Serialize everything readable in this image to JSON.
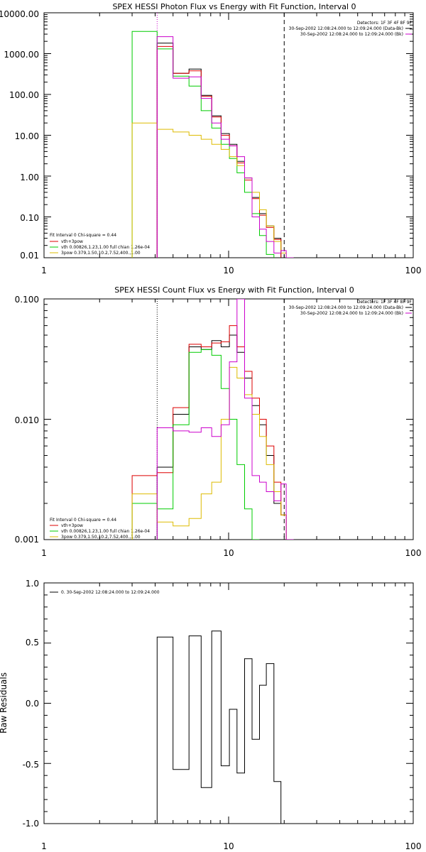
{
  "chart_data": [
    {
      "type": "line",
      "title": "SPEX HESSI Photon Flux vs Energy with Fit Function, Interval 0",
      "xscale": "log",
      "yscale": "log",
      "xlim": [
        1,
        100
      ],
      "ylim": [
        0.01,
        10000
      ],
      "xticks": [
        1,
        10,
        100
      ],
      "xtick_labels": [
        "1",
        "10",
        "100"
      ],
      "yticks": [
        0.01,
        0.1,
        1,
        10,
        100,
        1000,
        10000
      ],
      "ytick_labels": [
        "0.01",
        "0.10",
        "1.00",
        "10.00",
        "100.00",
        "1000.00",
        "10000.00"
      ],
      "ylabel": "",
      "xlabel": "",
      "detector_text": "Detectors: 1F 3F 4F 8F 9F",
      "time_labels": [
        {
          "text": "30-Sep-2002 12:08:24.000 to 12:09:24.000 (Data-Bk)",
          "color": "#000000"
        },
        {
          "text": "30-Sep-2002 12:08:24.000 to 12:09:24.000 (Bk)",
          "color": "#cc00cc"
        }
      ],
      "fit_text": "Fit Interval 0   Chi-square = 0.44",
      "legend": [
        {
          "label": "vth+3pow",
          "color": "#dd0000"
        },
        {
          "label": "vth 0.00826,1.23,1.00  full chian 1.26e-04",
          "color": "#00cc00"
        },
        {
          "label": "3pow 0.379,1.50,10.2,7.52,400.,1.00",
          "color": "#ddbb00"
        }
      ],
      "vlines": [
        {
          "x": 4.1,
          "style": "dotted",
          "color": "#cc00cc"
        },
        {
          "x": 20,
          "style": "dashed",
          "color": "#000000"
        }
      ],
      "bin_edges": [
        3.0,
        4.1,
        5.0,
        6.1,
        7.1,
        8.1,
        9.1,
        10.1,
        11.1,
        12.2,
        13.4,
        14.7,
        16.0,
        17.6,
        19.2,
        20.5,
        22.5
      ],
      "series": [
        {
          "name": "Data-Bk",
          "color": "#000000",
          "start": 1,
          "values": [
            1800,
            330,
            420,
            95,
            30,
            11,
            6,
            2.3,
            0.9,
            0.3,
            0.12,
            0.06,
            0.03
          ]
        },
        {
          "name": "vth+3pow",
          "color": "#dd0000",
          "start": 1,
          "values": [
            1500,
            330,
            380,
            90,
            28,
            10,
            5.5,
            2.1,
            0.8,
            0.28,
            0.11,
            0.055,
            0.028
          ]
        },
        {
          "name": "vth",
          "color": "#00cc00",
          "start": 0,
          "values": [
            3500,
            1300,
            280,
            160,
            40,
            15,
            6,
            2.7,
            1.2,
            0.4,
            0.12,
            0.035,
            0.012
          ]
        },
        {
          "name": "3pow",
          "color": "#ddbb00",
          "start": 0,
          "values": [
            20,
            14,
            12,
            10,
            8,
            6,
            4.5,
            3,
            1.8,
            0.9,
            0.4,
            0.15,
            0.06,
            0.025,
            0.013
          ]
        },
        {
          "name": "Bk",
          "color": "#cc00cc",
          "start": 1,
          "values": [
            2600,
            250,
            270,
            80,
            20,
            8,
            5.5,
            3.0,
            0.9,
            0.1,
            0.05,
            0.025,
            0.013,
            0.015,
            0.008
          ]
        }
      ]
    },
    {
      "type": "line",
      "title": "SPEX HESSI Count Flux vs Energy with Fit Function, Interval 0",
      "xscale": "log",
      "yscale": "log",
      "xlim": [
        1,
        100
      ],
      "ylim": [
        0.001,
        0.1
      ],
      "xticks": [
        1,
        10,
        100
      ],
      "xtick_labels": [
        "1",
        "10",
        "100"
      ],
      "yticks": [
        0.001,
        0.01,
        0.1
      ],
      "ytick_labels": [
        "0.001",
        "0.010",
        "0.100"
      ],
      "ylabel": "",
      "xlabel": "",
      "detector_text": "Detectors: 1F 3F 4F 8F 9F",
      "time_labels": [
        {
          "text": "30-Sep-2002 12:08:24.000 to 12:09:24.000 (Data-Bk)",
          "color": "#000000"
        },
        {
          "text": "30-Sep-2002 12:08:24.000 to 12:09:24.000 (Bk)",
          "color": "#cc00cc"
        }
      ],
      "fit_text": "Fit Interval 0   Chi-square = 0.44",
      "legend": [
        {
          "label": "vth+3pow",
          "color": "#dd0000"
        },
        {
          "label": "vth 0.00826,1.23,1.00  full chian 1.26e-04",
          "color": "#00cc00"
        },
        {
          "label": "3pow 0.379,1.50,10.2,7.52,400.,1.00",
          "color": "#ddbb00"
        }
      ],
      "vlines": [
        {
          "x": 4.1,
          "style": "dotted",
          "color": "#000000"
        },
        {
          "x": 20,
          "style": "dashed",
          "color": "#000000"
        }
      ],
      "bin_edges": [
        3.0,
        4.1,
        5.0,
        6.1,
        7.1,
        8.1,
        9.1,
        10.1,
        11.1,
        12.2,
        13.4,
        14.7,
        16.0,
        17.6,
        19.2,
        20.5,
        22.5
      ],
      "series": [
        {
          "name": "Data-Bk",
          "color": "#000000",
          "start": 1,
          "values": [
            0.004,
            0.011,
            0.04,
            0.038,
            0.045,
            0.04,
            0.05,
            0.036,
            0.022,
            0.013,
            0.009,
            0.005,
            0.002,
            0.0016
          ]
        },
        {
          "name": "vth+3pow",
          "color": "#dd0000",
          "start": 0,
          "values": [
            0.0034,
            0.0036,
            0.0125,
            0.042,
            0.04,
            0.043,
            0.044,
            0.06,
            0.04,
            0.025,
            0.015,
            0.01,
            0.006,
            0.003,
            0.0016
          ]
        },
        {
          "name": "vth",
          "color": "#00cc00",
          "start": 0,
          "values": [
            0.002,
            0.0018,
            0.009,
            0.036,
            0.038,
            0.034,
            0.018,
            0.01,
            0.0042,
            0.0018,
            0.0009
          ]
        },
        {
          "name": "3pow",
          "color": "#ddbb00",
          "start": 0,
          "values": [
            0.0024,
            0.0014,
            0.0013,
            0.0015,
            0.0024,
            0.003,
            0.01,
            0.027,
            0.022,
            0.016,
            0.011,
            0.0072,
            0.0042,
            0.0025,
            0.0016
          ]
        },
        {
          "name": "Bk",
          "color": "#cc00cc",
          "start": 1,
          "values": [
            0.0085,
            0.008,
            0.0078,
            0.0085,
            0.0072,
            0.009,
            0.03,
            0.1,
            0.015,
            0.0034,
            0.003,
            0.0025,
            0.0021,
            0.0029,
            0.001
          ]
        }
      ]
    },
    {
      "type": "line",
      "title": "",
      "xscale": "log",
      "yscale": "linear",
      "xlim": [
        1,
        100
      ],
      "ylim": [
        -1.0,
        1.0
      ],
      "xticks": [
        1,
        10,
        100
      ],
      "xtick_labels": [
        "1",
        "10",
        "100"
      ],
      "yticks": [
        -1.0,
        -0.5,
        0.0,
        0.5,
        1.0
      ],
      "ytick_labels": [
        "-1.0",
        "-0.5",
        "0.0",
        "0.5",
        "1.0"
      ],
      "ylabel": "Raw Residuals",
      "xlabel": "",
      "residual_legend": "0. 30-Sep-2002 12:08:24.000 to 12:09:24.000",
      "bin_edges": [
        4.1,
        5.0,
        6.1,
        7.1,
        8.1,
        9.1,
        10.1,
        11.1,
        12.2,
        13.4,
        14.7,
        16.0,
        17.6,
        19.2,
        20.5
      ],
      "series": [
        {
          "name": "",
          "color": "#000000",
          "values": [
            0.55,
            -0.55,
            0.56,
            -0.7,
            0.6,
            -0.52,
            -0.05,
            -0.58,
            0.37,
            -0.3,
            0.15,
            0.33,
            -0.65,
            -1.0
          ]
        }
      ]
    }
  ]
}
